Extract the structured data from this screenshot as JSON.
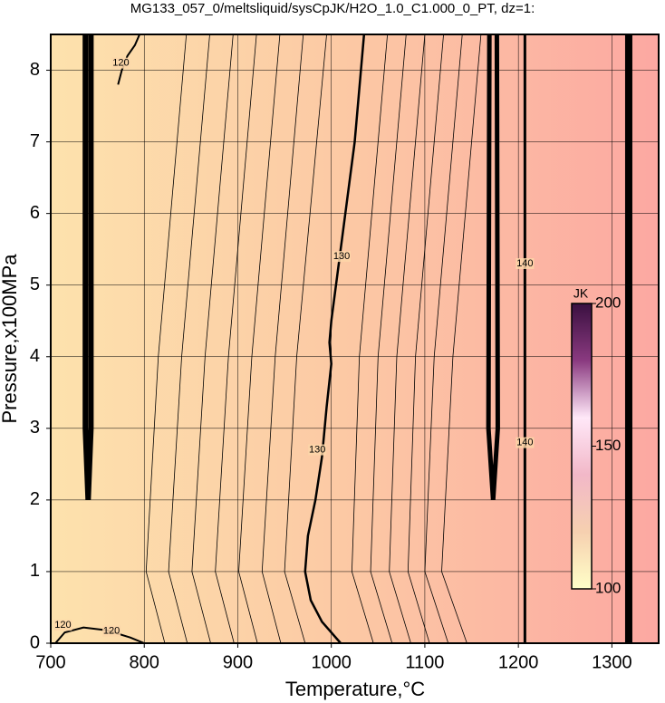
{
  "chart_data": {
    "type": "contour",
    "title": "MG133_057_0/meltsliquid/sysCpJK/H2O_1.0_C1.000_0_PT, dz=1:",
    "x_label": "Temperature,°C",
    "y_label": "Pressure,x100MPa",
    "xlim": [
      700,
      1350
    ],
    "ylim": [
      0,
      8.5
    ],
    "xticks": [
      700,
      800,
      900,
      1000,
      1100,
      1200,
      1300
    ],
    "yticks": [
      0,
      1,
      2,
      3,
      4,
      5,
      6,
      7,
      8
    ],
    "grid": true,
    "field_colors": [
      "#fde2ad",
      "#fcc8a4",
      "#fca8a2"
    ],
    "contours": [
      {
        "level": 120,
        "line_width": 2,
        "x": [
          705,
          715,
          735,
          760,
          785,
          800
        ],
        "y": [
          0,
          0.15,
          0.22,
          0.18,
          0.08,
          0
        ],
        "labels": [
          {
            "x": 713,
            "y": 0.25
          },
          {
            "x": 765,
            "y": 0.17
          }
        ]
      },
      {
        "level": 120,
        "line_width": 2,
        "x": [
          772,
          776,
          782,
          790,
          795
        ],
        "y": [
          7.8,
          8.0,
          8.2,
          8.35,
          8.5
        ],
        "labels": [
          {
            "x": 775,
            "y": 8.1
          }
        ]
      },
      {
        "level": 130,
        "line_width": 2.5,
        "x": [
          1035,
          1025,
          1010,
          1000,
          998,
          1000,
          995,
          990,
          983,
          975,
          972,
          978,
          990,
          1010
        ],
        "y": [
          8.5,
          7,
          5.5,
          4.5,
          4.2,
          3.9,
          3.3,
          2.6,
          2.0,
          1.5,
          1.0,
          0.6,
          0.3,
          0
        ],
        "labels": [
          {
            "x": 1011,
            "y": 5.4
          },
          {
            "x": 985,
            "y": 2.7
          }
        ]
      },
      {
        "level": 140,
        "line_width": 3,
        "x": [
          1207,
          1207
        ],
        "y": [
          0,
          8.5
        ],
        "labels": [
          {
            "x": 1207,
            "y": 5.3
          },
          {
            "x": 1207,
            "y": 2.8
          }
        ]
      },
      {
        "line_width": 6,
        "x": [
          737,
          737,
          740,
          743,
          743
        ],
        "y": [
          8.5,
          3,
          2,
          3,
          8.5
        ]
      },
      {
        "line_width": 5,
        "x": [
          1169,
          1168,
          1173,
          1178,
          1177
        ],
        "y": [
          8.5,
          3,
          2,
          3,
          8.5
        ]
      },
      {
        "line_width": 8,
        "x": [
          1318,
          1318
        ],
        "y": [
          0,
          8.5
        ]
      },
      {
        "line_width": 0.8,
        "x": [
          845,
          815,
          802,
          822
        ],
        "y": [
          8.5,
          4,
          1,
          0
        ]
      },
      {
        "line_width": 0.8,
        "x": [
          870,
          840,
          826,
          846
        ],
        "y": [
          8.5,
          4,
          1,
          0
        ]
      },
      {
        "line_width": 0.8,
        "x": [
          895,
          865,
          851,
          871
        ],
        "y": [
          8.5,
          4,
          1,
          0
        ]
      },
      {
        "line_width": 0.8,
        "x": [
          920,
          890,
          876,
          896
        ],
        "y": [
          8.5,
          4,
          1,
          0
        ]
      },
      {
        "line_width": 0.8,
        "x": [
          945,
          915,
          901,
          921
        ],
        "y": [
          8.5,
          4,
          1,
          0
        ]
      },
      {
        "line_width": 0.8,
        "x": [
          970,
          940,
          926,
          946
        ],
        "y": [
          8.5,
          4,
          1,
          0
        ]
      },
      {
        "line_width": 0.8,
        "x": [
          995,
          963,
          950,
          972
        ],
        "y": [
          8.5,
          4,
          1,
          0
        ]
      },
      {
        "line_width": 0.8,
        "x": [
          1060,
          1030,
          1022,
          1045
        ],
        "y": [
          8.5,
          4,
          1,
          0
        ]
      },
      {
        "line_width": 0.8,
        "x": [
          1080,
          1050,
          1042,
          1065
        ],
        "y": [
          8.5,
          4,
          1,
          0
        ]
      },
      {
        "line_width": 0.8,
        "x": [
          1100,
          1070,
          1062,
          1085
        ],
        "y": [
          8.5,
          4,
          1,
          0
        ]
      },
      {
        "line_width": 0.8,
        "x": [
          1120,
          1090,
          1082,
          1105
        ],
        "y": [
          8.5,
          4,
          1,
          0
        ]
      },
      {
        "line_width": 0.8,
        "x": [
          1140,
          1110,
          1100,
          1125
        ],
        "y": [
          8.5,
          4,
          1,
          0
        ]
      },
      {
        "line_width": 0.8,
        "x": [
          1160,
          1130,
          1118,
          1145
        ],
        "y": [
          8.5,
          4,
          1,
          0
        ]
      }
    ],
    "colorbar": {
      "label": "JK",
      "lim": [
        100,
        200
      ],
      "ticks": [
        100,
        150,
        200
      ],
      "colors": [
        "#ffffc8",
        "#f6d0b0",
        "#f2b8c8",
        "#ffe8f8",
        "#8a3a80",
        "#3a1040"
      ]
    }
  }
}
